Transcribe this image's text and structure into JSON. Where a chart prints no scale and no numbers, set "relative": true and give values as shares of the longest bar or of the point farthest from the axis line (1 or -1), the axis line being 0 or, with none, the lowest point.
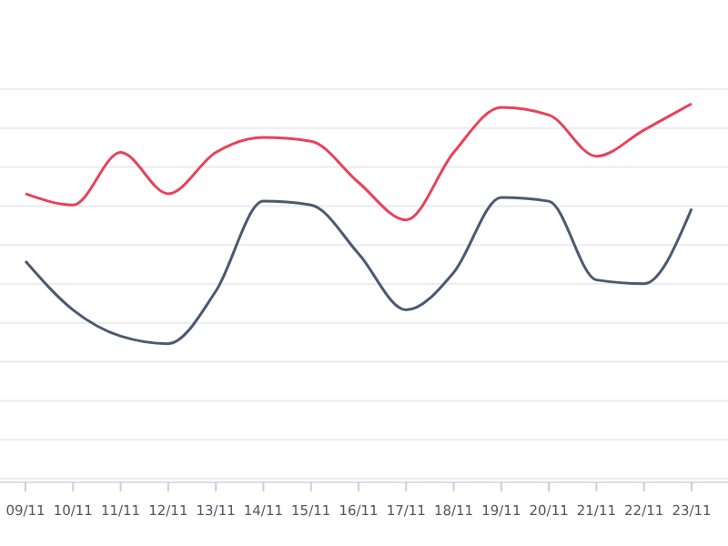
{
  "chart_data": {
    "type": "line",
    "relative": true,
    "grid": true,
    "categories": [
      "09/11",
      "10/11",
      "11/11",
      "12/11",
      "13/11",
      "14/11",
      "15/11",
      "16/11",
      "17/11",
      "18/11",
      "19/11",
      "20/11",
      "21/11",
      "22/11",
      "23/11"
    ],
    "series": [
      {
        "color": "#e8425a",
        "values": [
          0.76,
          0.73,
          0.87,
          0.76,
          0.87,
          0.91,
          0.9,
          0.79,
          0.69,
          0.87,
          0.99,
          0.97,
          0.86,
          0.93,
          1
        ]
      },
      {
        "color": "#4a5a70",
        "values": [
          0.58,
          0.45,
          0.38,
          0.36,
          0.5,
          0.74,
          0.73,
          0.6,
          0.45,
          0.55,
          0.75,
          0.74,
          0.53,
          0.52,
          0.72
        ]
      }
    ]
  }
}
